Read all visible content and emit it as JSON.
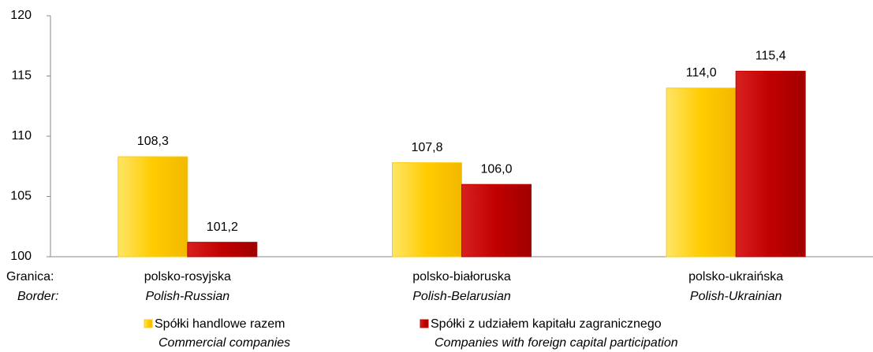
{
  "chart_data": {
    "type": "bar",
    "axis_label": "Granica:",
    "axis_label_en": "Border:",
    "categories": [
      "polsko-rosyjska",
      "polsko-białoruska",
      "polsko-ukraińska"
    ],
    "categories_en": [
      "Polish-Russian",
      "Polish-Belarusian",
      "Polish-Ukrainian"
    ],
    "series": [
      {
        "name": "Spółki handlowe razem",
        "name_en": "Commercial companies",
        "color": "#ffcc00",
        "values": [
          108.3,
          107.8,
          114.0
        ],
        "value_labels": [
          "108,3",
          "107,8",
          "114,0"
        ]
      },
      {
        "name": "Spółki z udziałem kapitału zagranicznego",
        "name_en": "Companies with foreign capital  participation",
        "color": "#c00000",
        "values": [
          101.2,
          106.0,
          115.4
        ],
        "value_labels": [
          "101,2",
          "106,0",
          "115,4"
        ]
      }
    ],
    "ylim": [
      100,
      120
    ],
    "yticks": [
      100,
      105,
      110,
      115,
      120
    ],
    "grid": false
  }
}
